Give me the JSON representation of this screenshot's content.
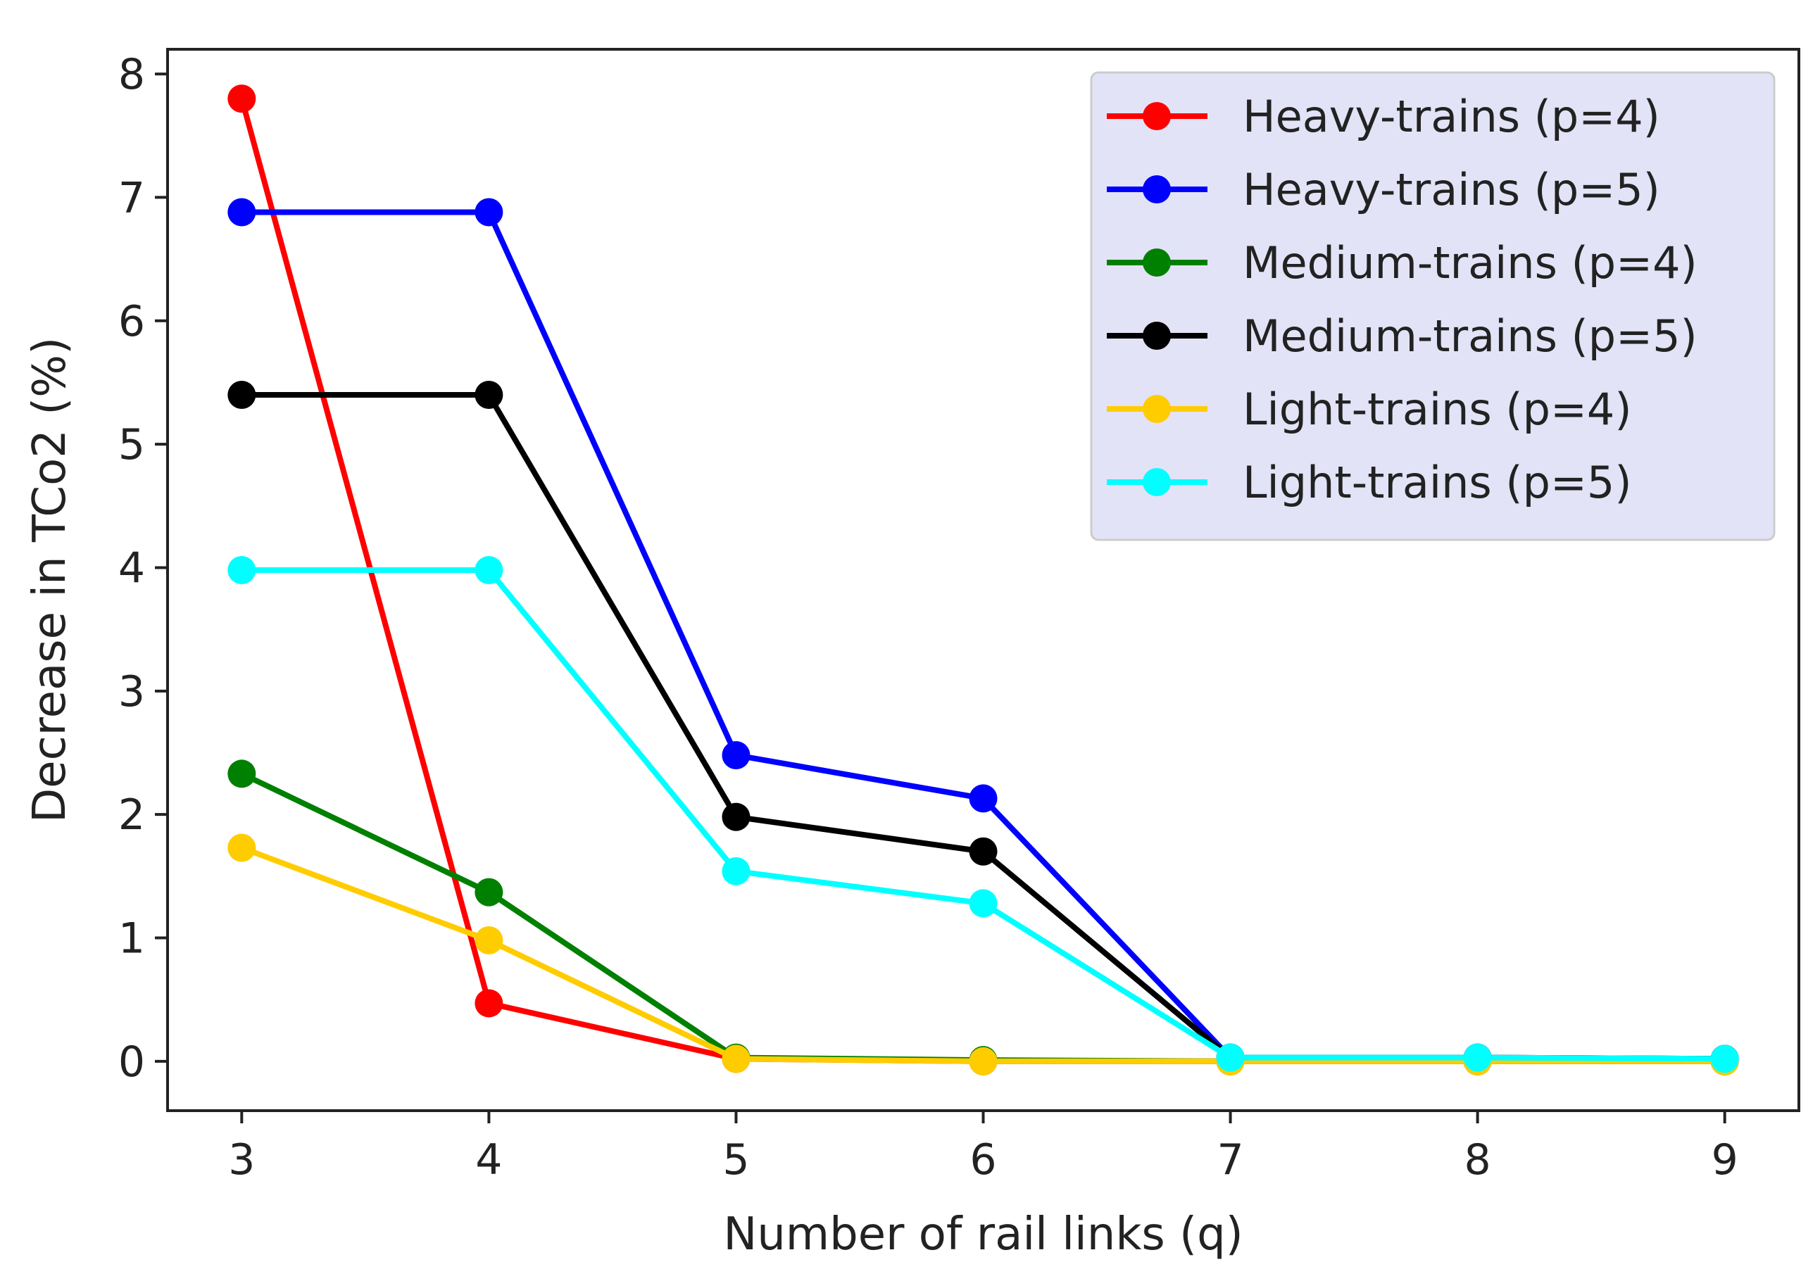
{
  "chart_data": {
    "type": "line",
    "xlabel": "Number of rail links (q)",
    "ylabel": "Decrease in TCo2 (%)",
    "x": [
      3,
      4,
      5,
      6,
      7,
      8,
      9
    ],
    "xlim": [
      2.7,
      9.3
    ],
    "ylim": [
      -0.4,
      8.2
    ],
    "xticks": [
      3,
      4,
      5,
      6,
      7,
      8,
      9
    ],
    "yticks": [
      0,
      1,
      2,
      3,
      4,
      5,
      6,
      7,
      8
    ],
    "grid": false,
    "legend_position": "top-right",
    "series": [
      {
        "name": "Heavy-trains (p=4)",
        "color": "#ff0000",
        "values": [
          7.8,
          0.47,
          0.02,
          0.0,
          0.0,
          0.0,
          0.0
        ]
      },
      {
        "name": "Heavy-trains (p=5)",
        "color": "#0000ff",
        "values": [
          6.88,
          6.88,
          2.48,
          2.13,
          0.03,
          0.03,
          0.02
        ]
      },
      {
        "name": "Medium-trains (p=4)",
        "color": "#008000",
        "values": [
          2.33,
          1.37,
          0.03,
          0.01,
          0.0,
          0.0,
          0.0
        ]
      },
      {
        "name": "Medium-trains (p=5)",
        "color": "#000000",
        "values": [
          5.4,
          5.4,
          1.98,
          1.7,
          0.03,
          0.03,
          0.02
        ]
      },
      {
        "name": "Light-trains (p=4)",
        "color": "#ffcc00",
        "values": [
          1.73,
          0.98,
          0.02,
          0.0,
          0.0,
          0.0,
          0.0
        ]
      },
      {
        "name": "Light-trains (p=5)",
        "color": "#00ffff",
        "values": [
          3.98,
          3.98,
          1.54,
          1.28,
          0.03,
          0.03,
          0.02
        ]
      }
    ]
  }
}
